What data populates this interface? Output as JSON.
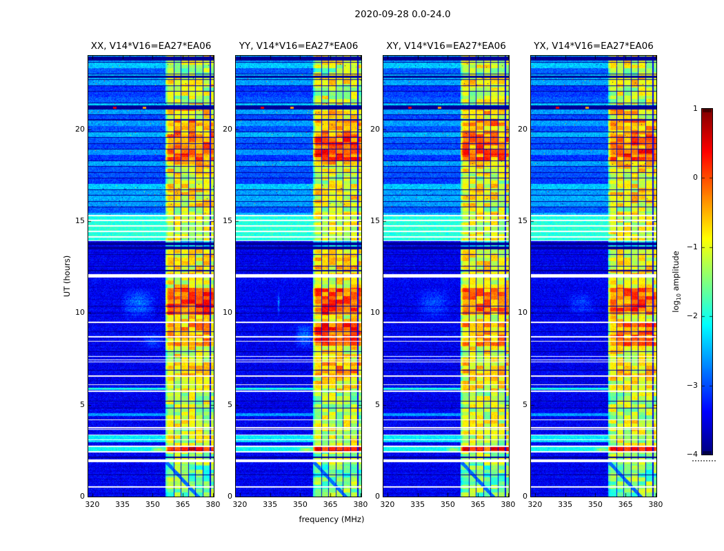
{
  "figure": {
    "title": "2020-09-28 0.0-24.0",
    "background_color": "#ffffff"
  },
  "axes": {
    "x_label": "frequency (MHz)",
    "y_label": "UT (hours)",
    "x_ticks": [
      "320",
      "335",
      "350",
      "365",
      "380"
    ],
    "y_ticks": [
      "0",
      "5",
      "10",
      "15",
      "20"
    ]
  },
  "panels": [
    {
      "id": "XX",
      "title": "XX, V14*V16=EA27*EA06"
    },
    {
      "id": "YY",
      "title": "YY, V14*V16=EA27*EA06"
    },
    {
      "id": "XY",
      "title": "XY, V14*V16=EA27*EA06"
    },
    {
      "id": "YX",
      "title": "YX, V14*V16=EA27*EA06"
    }
  ],
  "colorbar": {
    "ticks": [
      "1",
      "0",
      "−1",
      "−2",
      "−3",
      "−4"
    ],
    "label_prefix": "log",
    "label_sub": "10",
    "label_suffix": " amplitude"
  },
  "chart_data": {
    "type": "heatmap",
    "title": "2020-09-28 0.0-24.0",
    "xlabel": "frequency (MHz)",
    "ylabel": "UT (hours)",
    "xlim": [
      318,
      380.4
    ],
    "ylim": [
      0,
      24
    ],
    "x_tick_values": [
      320,
      335,
      350,
      365,
      380
    ],
    "y_tick_values": [
      0,
      5,
      10,
      15,
      20
    ],
    "value_scale": "log10 amplitude",
    "value_range": [
      -4,
      1
    ],
    "colormap": "jet",
    "colorbar_tick_values": [
      1,
      0,
      -1,
      -2,
      -3,
      -4
    ],
    "panels": [
      "XX",
      "YY",
      "XY",
      "YX"
    ],
    "baseline_log_amp": -3.45,
    "rfi_band": {
      "freq_lo": 356.3,
      "freq_hi": 380.4,
      "channel_edge_freqs": [
        360.6,
        364.2,
        367.8,
        371.4,
        375.0,
        378.6
      ]
    },
    "striped_scan_region_hours": [
      14.55,
      24
    ],
    "stripe_period_hours": 0.315,
    "data_gaps_hours": [
      [
        0.5,
        0.56
      ],
      [
        1.88,
        2.02
      ],
      [
        2.4,
        2.46
      ],
      [
        2.7,
        2.76
      ],
      [
        3.06,
        3.12
      ],
      [
        3.32,
        3.37
      ],
      [
        3.64,
        3.68
      ],
      [
        3.73,
        3.77
      ],
      [
        4.16,
        4.21
      ],
      [
        5.7,
        5.76
      ],
      [
        6.06,
        6.12
      ],
      [
        6.54,
        6.59
      ],
      [
        7.3,
        7.36
      ],
      [
        7.42,
        7.46
      ],
      [
        7.6,
        7.65
      ],
      [
        8.42,
        8.47
      ],
      [
        8.66,
        8.72
      ],
      [
        9.46,
        9.53
      ],
      [
        11.93,
        12.13
      ],
      [
        13.9,
        13.96
      ],
      [
        14.1,
        14.16
      ],
      [
        14.4,
        14.46
      ],
      [
        14.7,
        14.76
      ],
      [
        15.0,
        15.06
      ],
      [
        15.26,
        15.32
      ]
    ],
    "dark_rows_hours": [
      [
        2.1,
        2.18
      ],
      [
        12.28,
        12.35
      ],
      [
        13.48,
        13.62
      ],
      [
        13.68,
        13.82
      ],
      [
        20.5,
        20.55
      ],
      [
        21.06,
        21.3
      ],
      [
        22.8,
        22.92
      ],
      [
        23.75,
        23.95
      ]
    ],
    "dark_lines_hours": [
      4.85,
      5.2,
      6.9,
      7.9,
      9.0,
      10.02,
      10.38,
      12.55,
      13.2,
      1.2
    ],
    "bright_rows_hours": [
      [
        2.46,
        2.7,
        -2.1
      ],
      [
        2.95,
        3.06,
        -2.3
      ],
      [
        3.12,
        3.32,
        -2.2
      ],
      [
        4.38,
        4.52,
        -2.6
      ],
      [
        5.82,
        5.94,
        -2.0
      ],
      [
        13.96,
        14.1,
        -1.95
      ],
      [
        14.16,
        14.4,
        -1.95
      ],
      [
        14.46,
        14.7,
        -1.9
      ],
      [
        14.76,
        15.0,
        -1.95
      ],
      [
        15.06,
        15.26,
        -2.0
      ]
    ],
    "band_intensity_profile": [
      [
        0,
        1.05,
        0.4
      ],
      [
        1.05,
        1.78,
        0.34
      ],
      [
        1.78,
        2.4,
        0.46
      ],
      [
        2.4,
        2.72,
        1.0
      ],
      [
        2.72,
        3.1,
        0.52
      ],
      [
        3.1,
        4.2,
        0.56
      ],
      [
        4.2,
        5.7,
        0.5
      ],
      [
        5.7,
        6.5,
        0.6
      ],
      [
        6.5,
        7.35,
        0.66
      ],
      [
        7.35,
        8.2,
        0.6
      ],
      [
        8.2,
        9.45,
        0.76
      ],
      [
        9.45,
        9.9,
        0.6
      ],
      [
        9.9,
        11.35,
        0.86
      ],
      [
        11.35,
        11.93,
        0.6
      ],
      [
        12.13,
        13.45,
        0.62
      ],
      [
        13.45,
        13.9,
        0.12
      ],
      [
        13.9,
        15.35,
        0.55
      ],
      [
        15.35,
        17.55,
        0.62
      ],
      [
        17.55,
        18.3,
        0.74
      ],
      [
        18.3,
        19.6,
        0.94
      ],
      [
        19.6,
        20.55,
        0.82
      ],
      [
        20.55,
        21.06,
        0.7
      ],
      [
        21.06,
        21.35,
        0.1
      ],
      [
        21.35,
        22.8,
        0.62
      ],
      [
        22.8,
        24,
        0.55
      ]
    ],
    "panel_band_boost": {
      "XX": [
        [
          9.9,
          11.35,
          0.1
        ],
        [
          2.4,
          2.72,
          0.06
        ]
      ],
      "YY": [
        [
          8.2,
          9.45,
          0.2
        ],
        [
          6.5,
          7.35,
          0.12
        ],
        [
          18.3,
          19.6,
          0.1
        ],
        [
          9.9,
          11.35,
          0.06
        ],
        [
          2.4,
          2.72,
          0.1
        ],
        [
          12.13,
          13.45,
          0.05
        ]
      ],
      "XY": [
        [
          18.3,
          19.6,
          0.02
        ]
      ],
      "YX": [
        [
          8.2,
          9.45,
          0.1
        ],
        [
          9.9,
          11.35,
          0.05
        ],
        [
          18.3,
          19.6,
          0.05
        ]
      ]
    },
    "diffuse_blobs": {
      "XX": [
        [
          9.6,
          11.4,
          334,
          352,
          0.75
        ],
        [
          8.0,
          9.0,
          344,
          356,
          0.5
        ],
        [
          2.43,
          2.7,
          349,
          357,
          1.1
        ]
      ],
      "YY": [
        [
          8.0,
          9.5,
          347,
          357,
          0.8
        ],
        [
          9.8,
          11.2,
          338.7,
          339.9,
          0.95
        ],
        [
          2.43,
          2.7,
          349,
          357,
          1.1
        ]
      ],
      "XY": [
        [
          9.6,
          11.4,
          334,
          352,
          0.55
        ],
        [
          2.43,
          2.7,
          349,
          357,
          1.0
        ]
      ],
      "YX": [
        [
          9.8,
          11.2,
          336,
          350,
          0.45
        ],
        [
          2.43,
          2.7,
          349,
          357,
          1.0
        ]
      ]
    },
    "point_sources": [
      {
        "hour": 21.17,
        "freq": 331.2,
        "log_amp": 0.5
      },
      {
        "hour": 21.17,
        "freq": 346.0,
        "log_amp": -0.4
      }
    ],
    "diagonal_streak": {
      "hours": [
        0,
        1.92
      ],
      "freq_at_end": 372.6,
      "freq_at_start": 356.5,
      "log_amp_cap": -3.0
    }
  }
}
